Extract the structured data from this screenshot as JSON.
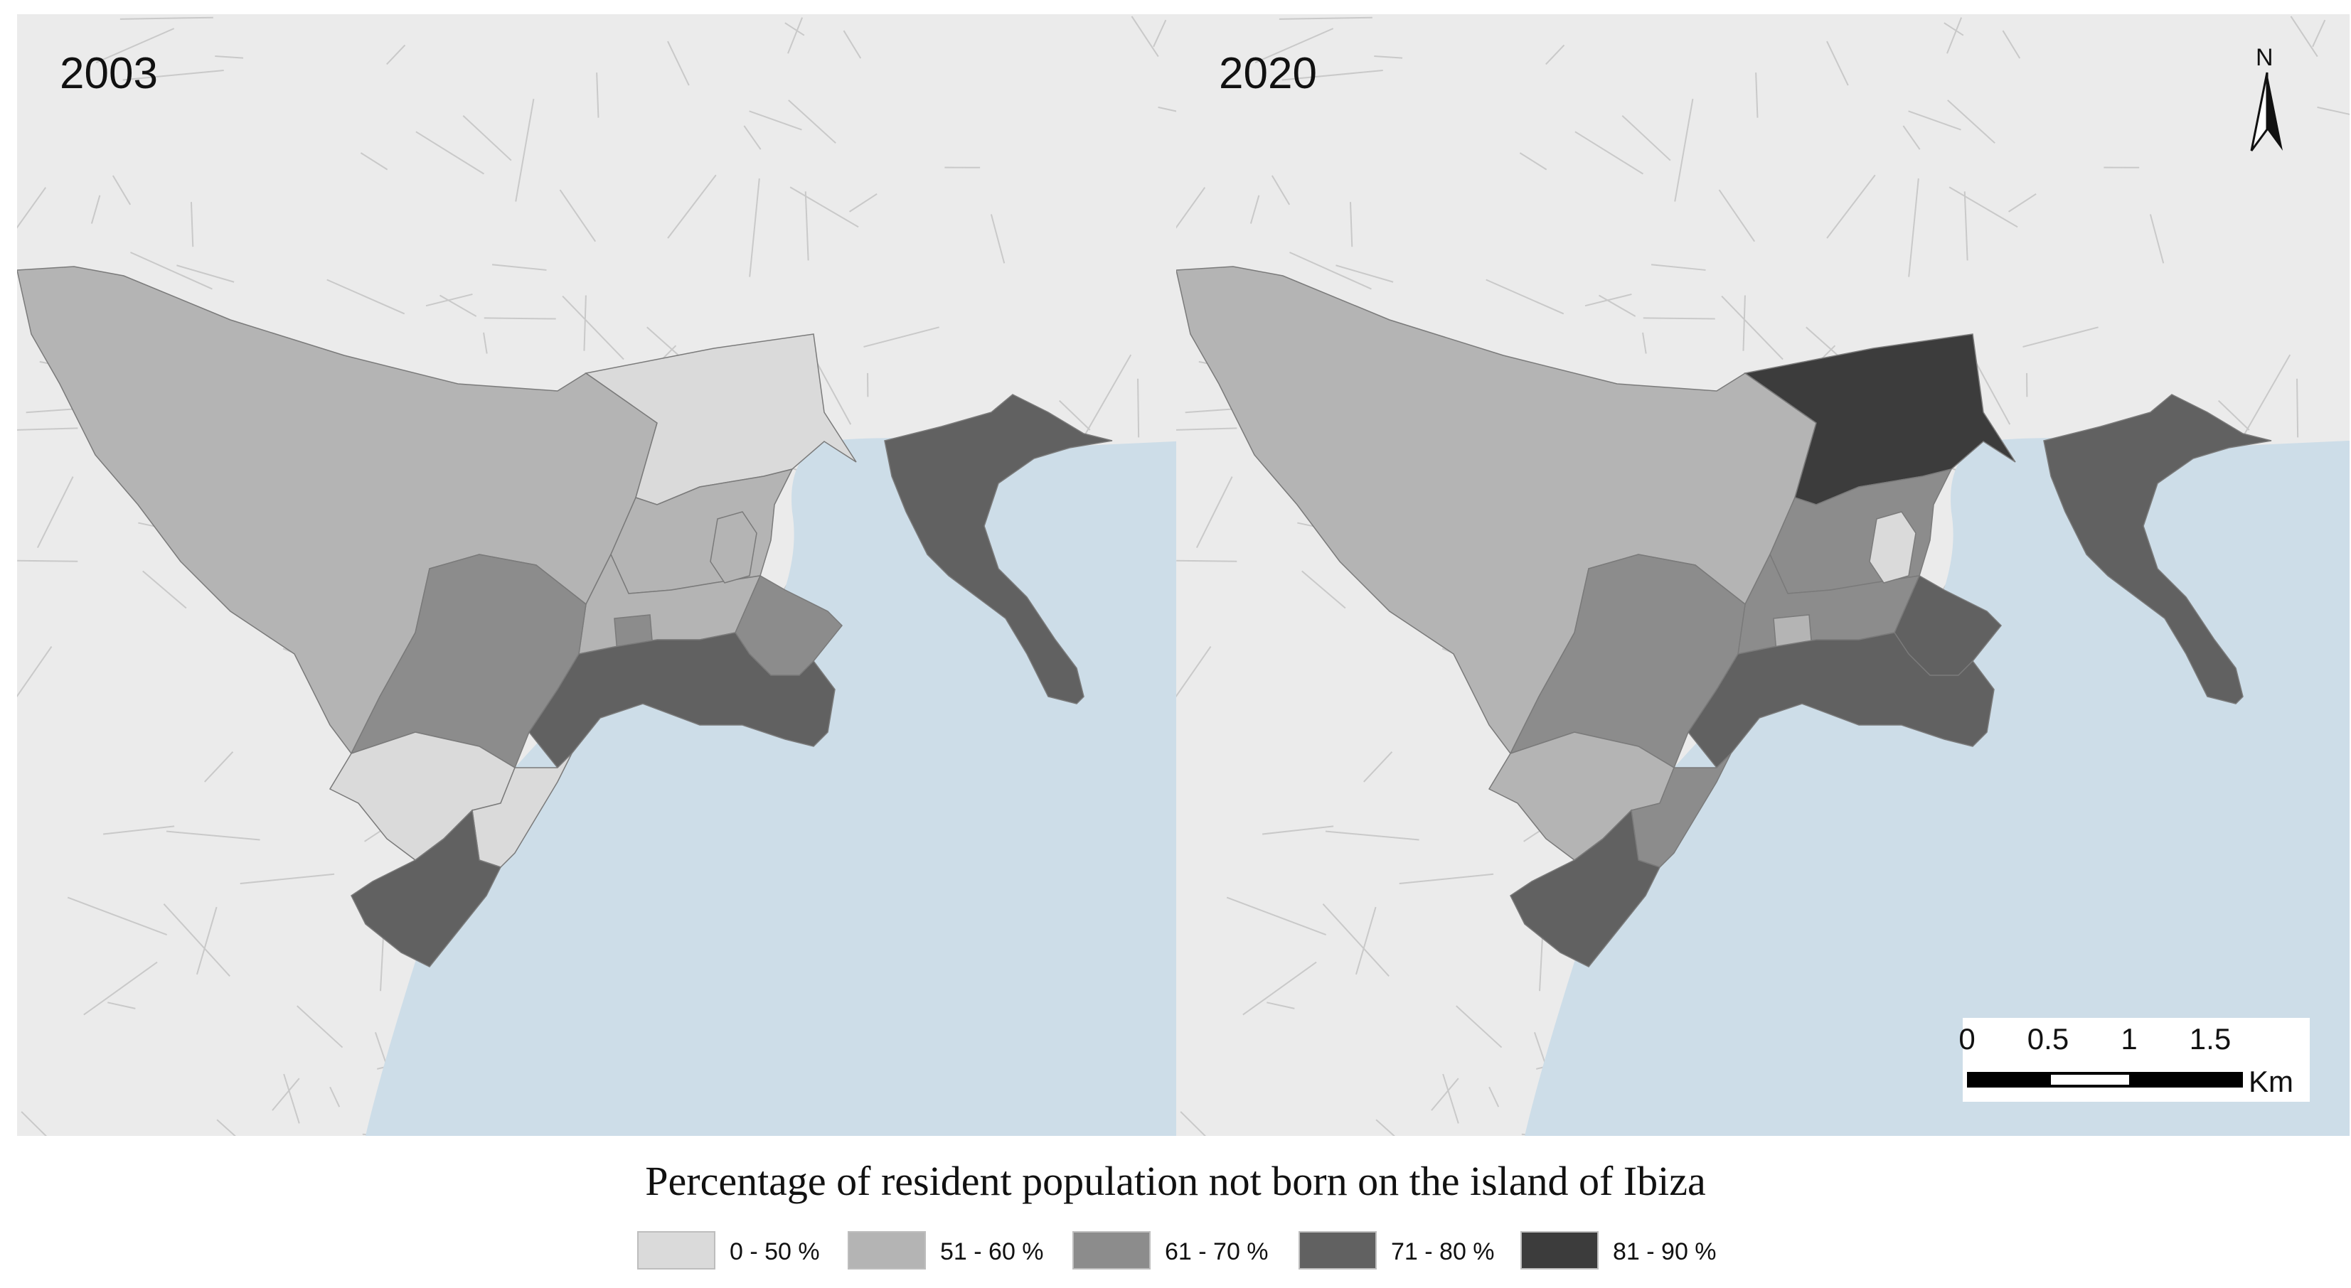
{
  "maps": [
    {
      "year": "2003",
      "north_label": "",
      "zone_classes": {
        "west_large": "51 - 60 %",
        "north_central": "0 - 50 %",
        "center_upper": "51 - 60 %",
        "center_band": "51 - 60 %",
        "small_block": "61 - 70 %",
        "mid_west": "61 - 70 %",
        "east_small": "61 - 70 %",
        "harbor_east": "71 - 80 %",
        "south_central": "71 - 80 %",
        "sw_light_a": "0 - 50 %",
        "sw_light_b": "0 - 50 %",
        "sw_dark": "71 - 80 %",
        "center_light": "51 - 60 %"
      }
    },
    {
      "year": "2020",
      "north_label": "N",
      "zone_classes": {
        "west_large": "51 - 60 %",
        "north_central": "81 - 90 %",
        "center_upper": "61 - 70 %",
        "center_band": "61 - 70 %",
        "small_block": "51 - 60 %",
        "mid_west": "61 - 70 %",
        "east_small": "71 - 80 %",
        "harbor_east": "71 - 80 %",
        "south_central": "71 - 80 %",
        "sw_light_a": "51 - 60 %",
        "sw_light_b": "61 - 70 %",
        "sw_dark": "71 - 80 %",
        "center_light": "0 - 50 %"
      }
    }
  ],
  "scale_bar": {
    "ticks": [
      "0",
      "0.5",
      "1",
      "1.5"
    ],
    "unit": "Km"
  },
  "legend": {
    "title": "Percentage of resident population not born on the island of Ibiza",
    "items": [
      {
        "label": "0 - 50 %",
        "color": "#dadada"
      },
      {
        "label": "51 - 60 %",
        "color": "#b4b4b4"
      },
      {
        "label": "61 - 70 %",
        "color": "#8c8c8c"
      },
      {
        "label": "71 - 80 %",
        "color": "#616161"
      },
      {
        "label": "81 - 90 %",
        "color": "#3c3c3c"
      }
    ]
  },
  "colors": {
    "land": "#ebebeb",
    "sea": "#cddde8",
    "streets": "#c9c9c9"
  }
}
